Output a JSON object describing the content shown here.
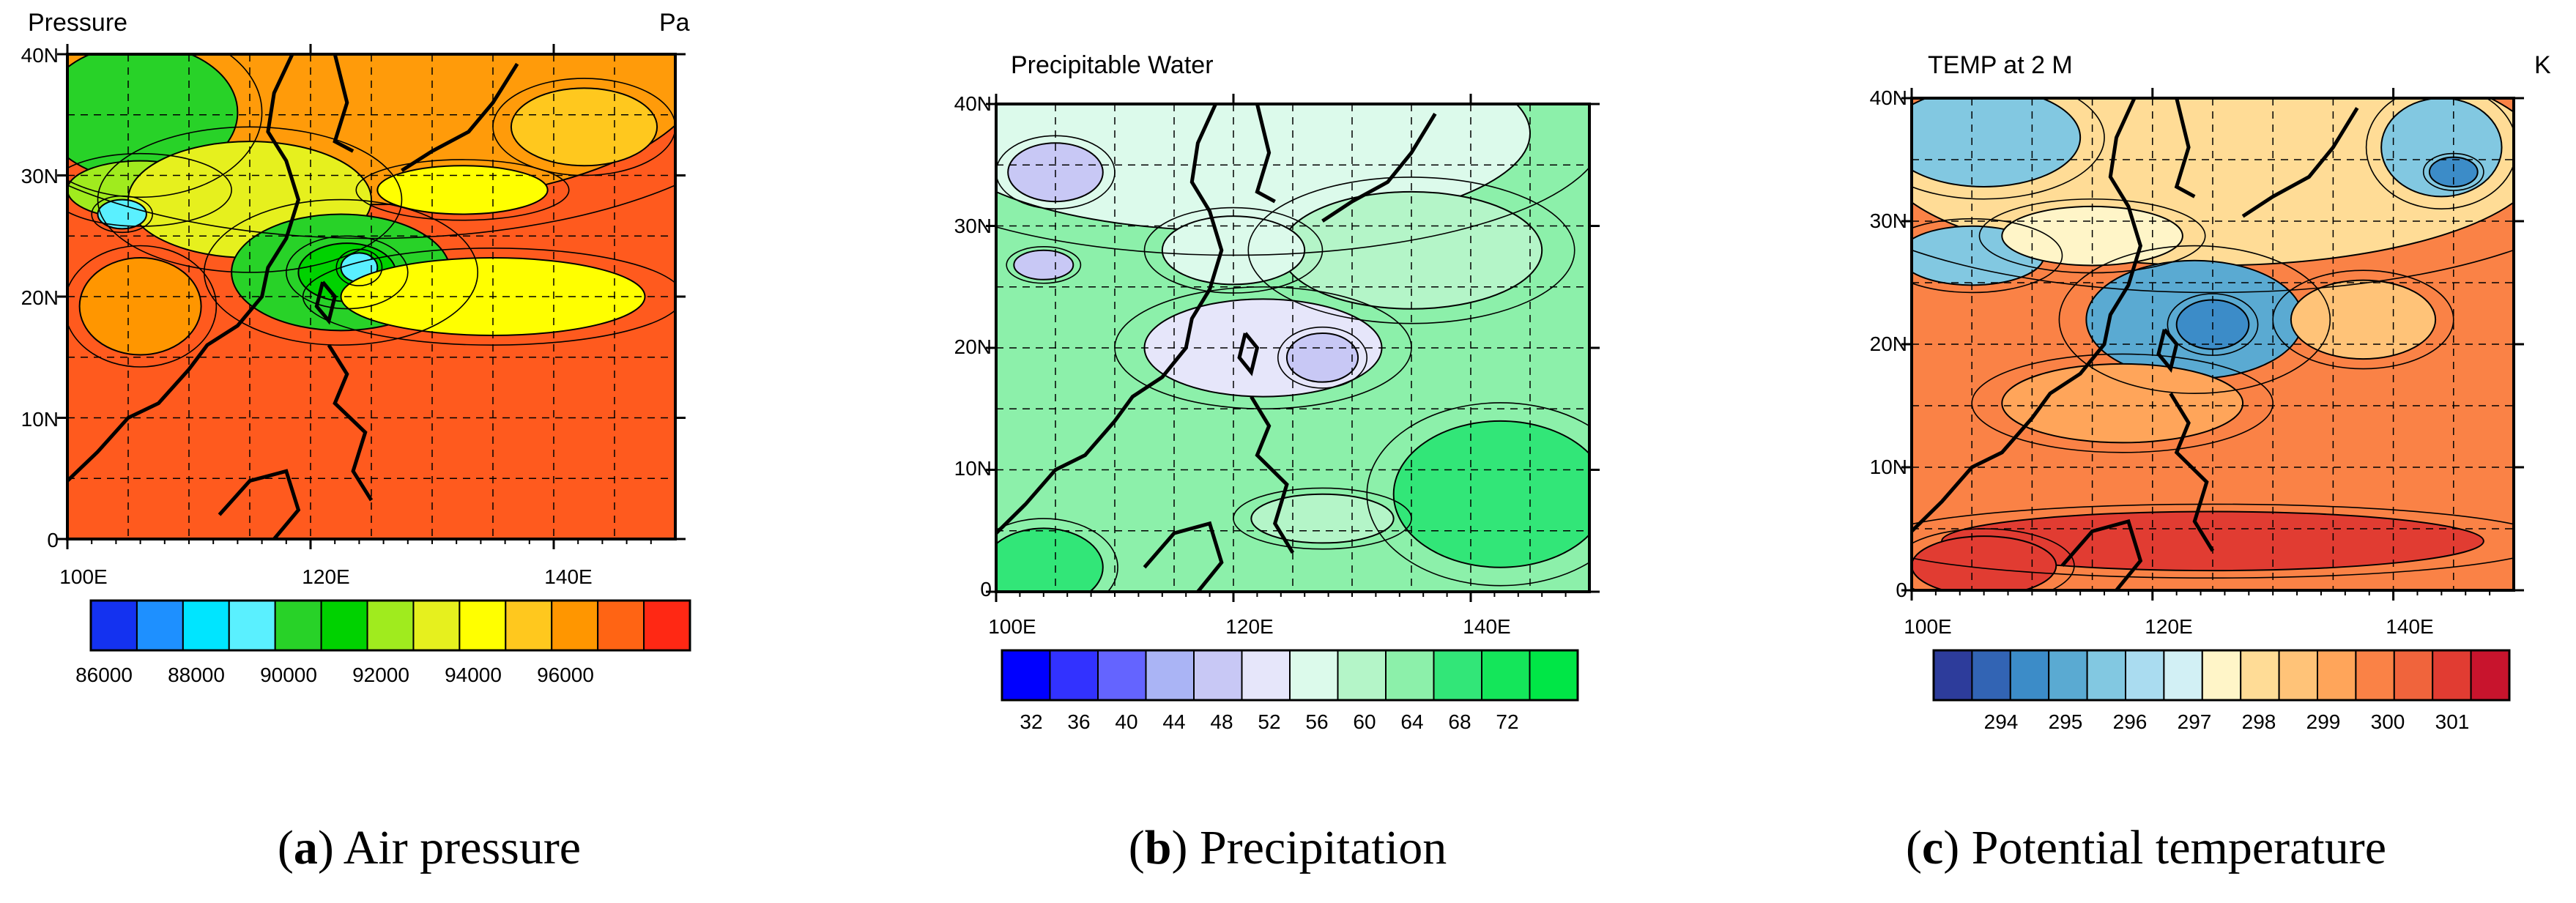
{
  "panels": [
    {
      "title": "Pressure",
      "unit": "Pa",
      "caption_letter": "a",
      "caption_text": "Air pressure",
      "colorbar_colors": [
        "#1432f0",
        "#1e90ff",
        "#00e5ff",
        "#5af0ff",
        "#28d228",
        "#00d200",
        "#a0eb1e",
        "#e6f01e",
        "#ffff00",
        "#ffc81e",
        "#ff9600",
        "#ff6414",
        "#ff2814"
      ],
      "colorbar_labels": [
        "86000",
        "88000",
        "90000",
        "92000",
        "94000",
        "96000"
      ]
    },
    {
      "title": "Precipitable Water",
      "unit": "",
      "caption_letter": "b",
      "caption_text": "Precipitation",
      "colorbar_colors": [
        "#0000ff",
        "#3232ff",
        "#6464ff",
        "#aab4f5",
        "#c8c8f5",
        "#e6e6fa",
        "#dcfaeb",
        "#b4f5c8",
        "#8cf0aa",
        "#32e678",
        "#14e65a",
        "#00e646"
      ],
      "colorbar_labels": [
        "32",
        "36",
        "40",
        "44",
        "48",
        "52",
        "56",
        "60",
        "64",
        "68",
        "72"
      ]
    },
    {
      "title": "TEMP at 2 M",
      "unit": "K",
      "caption_letter": "c",
      "caption_text": "Potential temperature",
      "colorbar_colors": [
        "#2d3c9b",
        "#3264b4",
        "#3c8cc8",
        "#5aaad2",
        "#82c8e1",
        "#aadcf0",
        "#d2f0f5",
        "#fff5c8",
        "#ffdc96",
        "#ffc378",
        "#ffa55a",
        "#fa8246",
        "#f0643c",
        "#e13c32",
        "#c8142d"
      ],
      "colorbar_labels": [
        "294",
        "295",
        "296",
        "297",
        "298",
        "299",
        "300",
        "301"
      ]
    }
  ],
  "y_ticks": [
    "40N",
    "30N",
    "20N",
    "10N",
    "0"
  ],
  "x_ticks": [
    "100E",
    "120E",
    "140E"
  ]
}
